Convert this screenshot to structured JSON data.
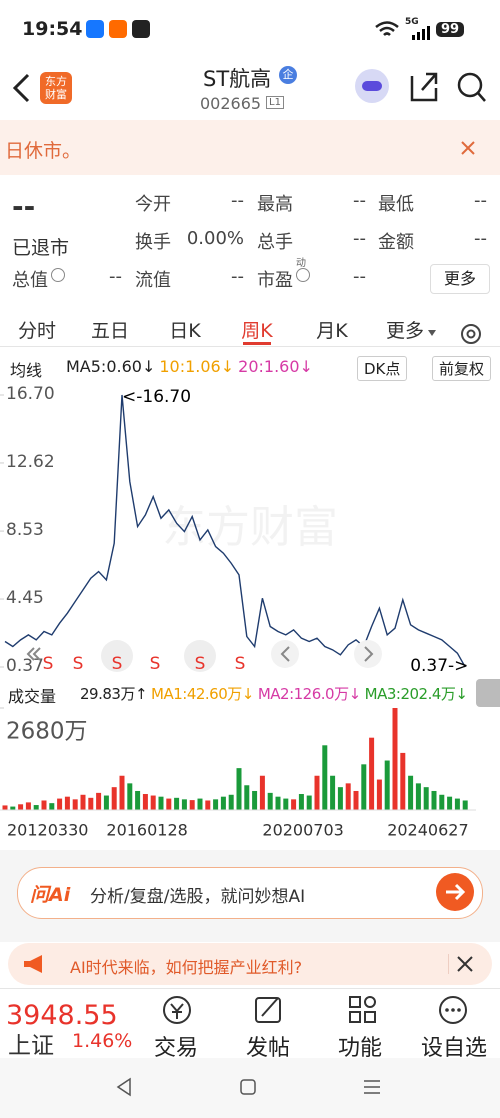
{
  "status_bar": {
    "time": "19:54",
    "network": "5G",
    "battery": "99"
  },
  "header": {
    "logo": "东方财富",
    "title": "ST航高",
    "badge": "企",
    "code": "002665",
    "level": "L1"
  },
  "notice": {
    "text": "日休市。"
  },
  "quote": {
    "price": "--",
    "status": "已退市",
    "fields": [
      {
        "label": "今开",
        "value": "--"
      },
      {
        "label": "最高",
        "value": "--"
      },
      {
        "label": "最低",
        "value": "--"
      },
      {
        "label": "换手",
        "value": "0.00%"
      },
      {
        "label": "总手",
        "value": "--"
      },
      {
        "label": "金额",
        "value": "--"
      },
      {
        "label": "总值",
        "value": "--"
      },
      {
        "label": "流值",
        "value": "--"
      },
      {
        "label": "市盈",
        "value": "--",
        "note": "动"
      }
    ],
    "more": "更多"
  },
  "tabs": {
    "items": [
      "分时",
      "五日",
      "日K",
      "周K",
      "月K",
      "更多"
    ],
    "active": 3
  },
  "chart_data": [
    {
      "type": "line",
      "indicator": "均线",
      "ma_labels": [
        {
          "text": "MA5:0.60↓",
          "color": "#222222"
        },
        {
          "text": "10:1.06↓",
          "color": "#f0a000"
        },
        {
          "text": "20:1.60↓",
          "color": "#d63aa5"
        }
      ],
      "buttons": [
        "DK点",
        "前复权"
      ],
      "watermark": "东方财富",
      "color": "#1f3c6e",
      "ylim": [
        0.37,
        16.7
      ],
      "yticks": [
        0.37,
        4.45,
        8.53,
        12.62,
        {
          "value": 16.7,
          "label": "16.70"
        }
      ],
      "max_label": "<-16.70",
      "min_label": "0.37->",
      "signals": [
        "S",
        "S",
        "S",
        "S",
        "S",
        "S"
      ],
      "values": [
        1.9,
        1.6,
        2.0,
        2.3,
        2.0,
        2.5,
        2.3,
        3.0,
        3.6,
        4.3,
        5.0,
        5.7,
        6.1,
        5.6,
        7.8,
        16.7,
        11.5,
        8.8,
        9.5,
        10.6,
        9.3,
        9.8,
        9.0,
        8.5,
        9.4,
        8.0,
        8.6,
        7.6,
        7.2,
        6.6,
        5.9,
        2.2,
        1.6,
        4.5,
        2.8,
        2.5,
        2.3,
        2.6,
        2.1,
        1.9,
        2.1,
        1.6,
        1.4,
        1.1,
        1.7,
        2.0,
        1.6,
        2.8,
        3.9,
        2.3,
        2.7,
        4.4,
        2.9,
        2.6,
        2.4,
        2.2,
        2.0,
        1.6,
        1.2,
        0.37
      ]
    },
    {
      "type": "bar",
      "indicator": "成交量",
      "ma_labels": [
        {
          "text": "29.83万↑",
          "color": "#222222"
        },
        {
          "text": "MA1:42.60万↓",
          "color": "#f0a000"
        },
        {
          "text": "MA2:126.0万↓",
          "color": "#d63aa5"
        },
        {
          "text": "MA3:202.4万↓",
          "color": "#2a9d2a"
        }
      ],
      "up_color": "#e8332b",
      "down_color": "#1a9a3a",
      "ylim": [
        0,
        2680
      ],
      "yticks": [
        {
          "value": 2680,
          "label": "2680万"
        }
      ],
      "categories": [
        "20120330",
        null,
        null,
        null,
        null,
        null,
        null,
        null,
        null,
        null,
        null,
        null,
        null,
        "20160128",
        null,
        null,
        null,
        null,
        null,
        null,
        null,
        null,
        null,
        null,
        null,
        null,
        null,
        null,
        null,
        null,
        null,
        null,
        null,
        "20200703",
        null,
        null,
        null,
        null,
        null,
        null,
        null,
        null,
        null,
        null,
        null,
        null,
        null,
        null,
        null,
        "20240627",
        null,
        null,
        null,
        null,
        null,
        null,
        null,
        null,
        null,
        null
      ],
      "values": [
        120,
        90,
        150,
        200,
        130,
        250,
        180,
        300,
        350,
        280,
        400,
        320,
        450,
        380,
        600,
        900,
        700,
        500,
        420,
        380,
        350,
        300,
        320,
        280,
        260,
        300,
        250,
        280,
        350,
        400,
        1100,
        650,
        500,
        900,
        450,
        350,
        300,
        280,
        420,
        380,
        900,
        1700,
        900,
        600,
        700,
        500,
        1200,
        1900,
        800,
        1300,
        2680,
        1500,
        900,
        700,
        600,
        500,
        400,
        350,
        300,
        250
      ]
    }
  ],
  "ai_bar": {
    "logo": "问Ai",
    "placeholder": "分析/复盘/选股，就问妙想AI"
  },
  "banner": {
    "text": "AI时代来临，如何把握产业红利?"
  },
  "bottom_nav": {
    "index_value": "3948.55",
    "index_name": "上证",
    "index_change": "1.46%",
    "items": [
      "交易",
      "发帖",
      "功能",
      "设自选"
    ]
  }
}
